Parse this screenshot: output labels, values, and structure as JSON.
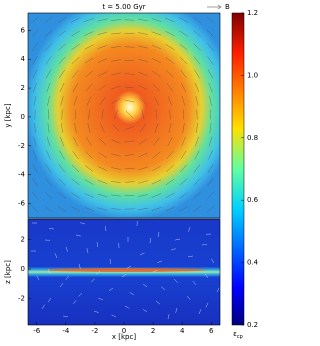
{
  "chart_data": {
    "type": "map",
    "title": "t = 5.00 Gyr",
    "legend_label": "B",
    "panels": [
      {
        "ylabel": "y [kpc]",
        "xlim": [
          -6.6,
          6.6
        ],
        "ylim": [
          -7,
          7.2
        ],
        "yticks": [
          -6,
          -4,
          -2,
          0,
          2,
          4,
          6
        ]
      },
      {
        "ylabel": "z [kpc]",
        "xlabel": "x [kpc]",
        "xlim": [
          -6.6,
          6.6
        ],
        "ylim": [
          -3.8,
          3.4
        ],
        "yticks": [
          -2,
          0,
          2
        ],
        "xticks": [
          -6,
          -4,
          -2,
          0,
          2,
          4,
          6
        ]
      }
    ],
    "colorbar": {
      "label": "ε",
      "label_subscript": "cp",
      "clim": [
        0.2,
        1.2
      ],
      "ticks": [
        {
          "value": 0.2,
          "label": "0.2"
        },
        {
          "value": 0.4,
          "label": "0.4"
        },
        {
          "value": 0.6,
          "label": "0.6"
        },
        {
          "value": 0.8,
          "label": "0.8"
        },
        {
          "value": 1.0,
          "label": "1.0"
        },
        {
          "value": 1.2,
          "label": "1.2"
        }
      ]
    }
  }
}
